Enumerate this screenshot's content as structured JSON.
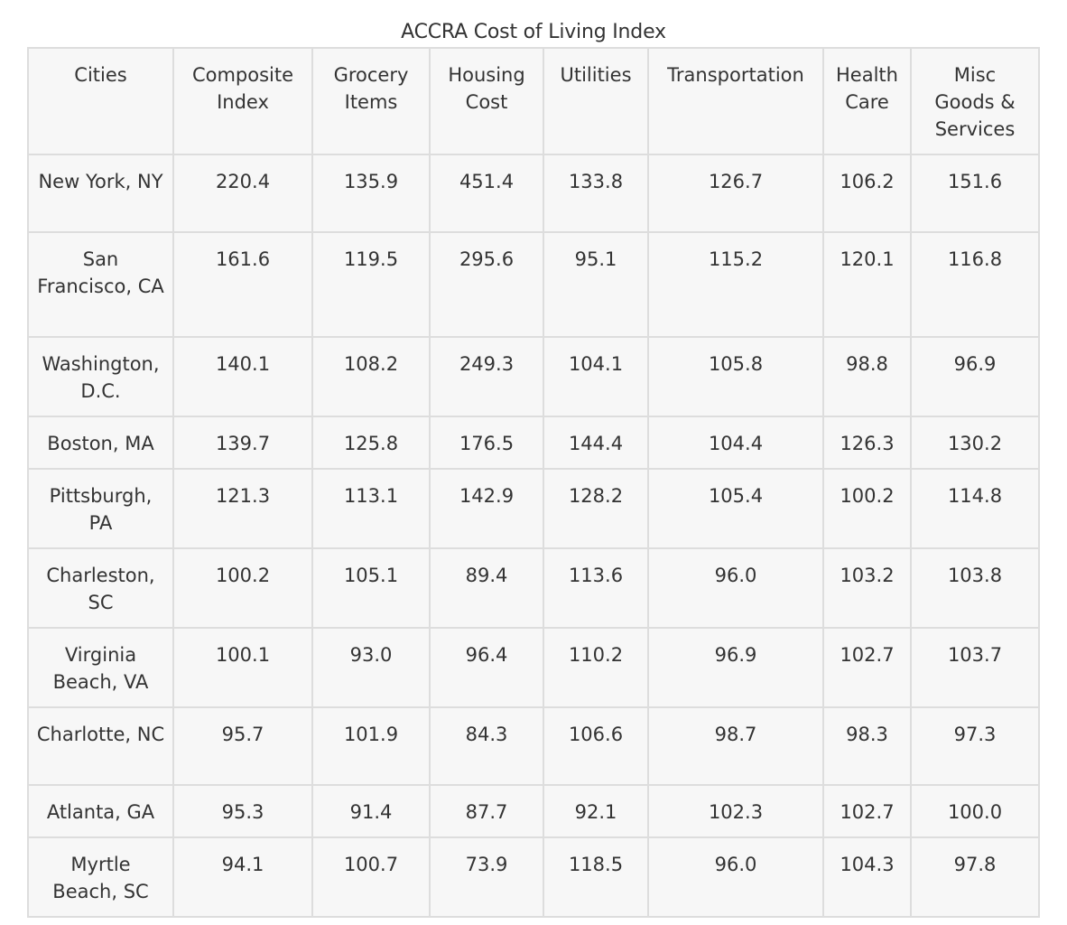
{
  "caption": "ACCRA Cost of Living Index",
  "columns": [
    "Cities",
    "Composite Index",
    "Grocery Items",
    "Housing Cost",
    "Utilities",
    "Transportation",
    "Health Care",
    "Misc Goods & Services"
  ],
  "rows": [
    [
      "New York, NY",
      "220.4",
      "135.9",
      "451.4",
      "133.8",
      "126.7",
      "106.2",
      "151.6"
    ],
    [
      "San Francisco, CA",
      "161.6",
      "119.5",
      "295.6",
      "95.1",
      "115.2",
      "120.1",
      "116.8"
    ],
    [
      "Washington, D.C.",
      "140.1",
      "108.2",
      "249.3",
      "104.1",
      "105.8",
      "98.8",
      "96.9"
    ],
    [
      "Boston, MA",
      "139.7",
      "125.8",
      "176.5",
      "144.4",
      "104.4",
      "126.3",
      "130.2"
    ],
    [
      "Pittsburgh, PA",
      "121.3",
      "113.1",
      "142.9",
      "128.2",
      "105.4",
      "100.2",
      "114.8"
    ],
    [
      "Charleston, SC",
      "100.2",
      "105.1",
      "89.4",
      "113.6",
      "96.0",
      "103.2",
      "103.8"
    ],
    [
      "Virginia Beach, VA",
      "100.1",
      "93.0",
      "96.4",
      "110.2",
      "96.9",
      "102.7",
      "103.7"
    ],
    [
      "Charlotte, NC",
      "95.7",
      "101.9",
      "84.3",
      "106.6",
      "98.7",
      "98.3",
      "97.3"
    ],
    [
      "Atlanta, GA",
      "95.3",
      "91.4",
      "87.7",
      "92.1",
      "102.3",
      "102.7",
      "100.0"
    ],
    [
      "Myrtle Beach, SC",
      "94.1",
      "100.7",
      "73.9",
      "118.5",
      "96.0",
      "104.3",
      "97.8"
    ]
  ]
}
